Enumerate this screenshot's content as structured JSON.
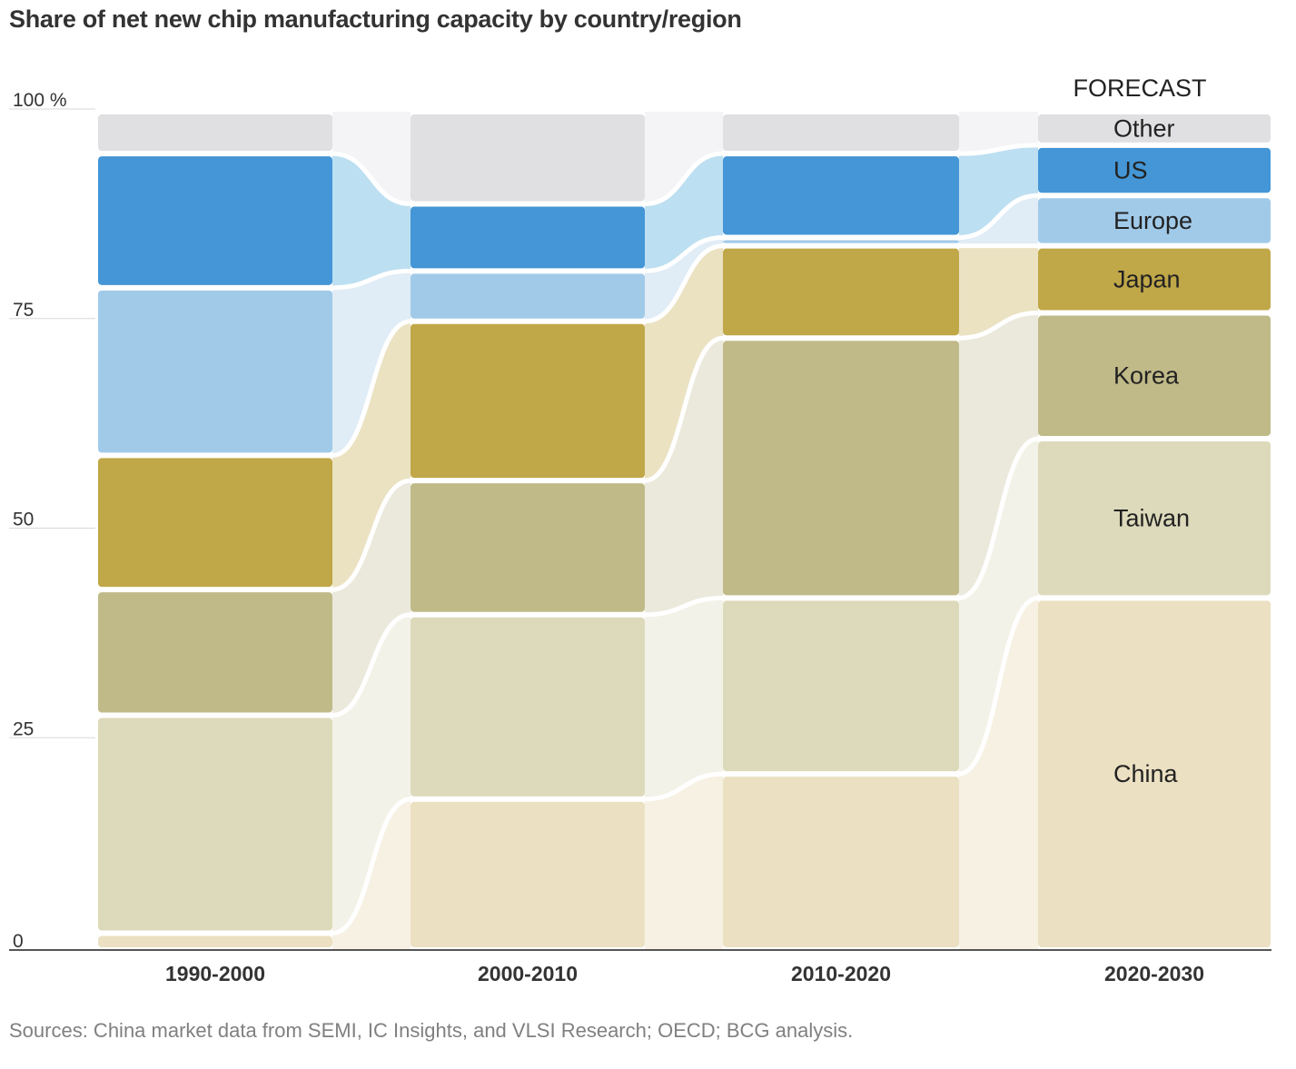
{
  "title": "Share of net new chip manufacturing capacity by country/region",
  "source": "Sources: China market data from SEMI, IC Insights, and VLSI Research; OECD; BCG analysis.",
  "forecast_label": "FORECAST",
  "colors": {
    "China": "#ebe0c2",
    "Taiwan": "#dddabb",
    "Korea": "#c0ba88",
    "Japan": "#c0a748",
    "Europe": "#a1cae9",
    "US": "#4496d6",
    "Other": "#e0e0e2"
  },
  "flow_colors": {
    "China": "#f6f1e3",
    "Taiwan": "#f3f2e8",
    "Korea": "#ebe9dc",
    "Japan": "#ebe2c2",
    "Europe": "#e0ecf6",
    "US": "#bcdff1",
    "Other": "#f4f4f6"
  },
  "chart_data": {
    "type": "bar",
    "stacked": true,
    "percent": true,
    "categories": [
      "1990-2000",
      "2000-2010",
      "2010-2020",
      "2020-2030"
    ],
    "forecast_category": "2020-2030",
    "ylim": [
      0,
      100
    ],
    "yticks": [
      0,
      25,
      50,
      75,
      100
    ],
    "ytick_labels": [
      "0",
      "25",
      "50",
      "75",
      "100 %"
    ],
    "series": [
      {
        "name": "China",
        "values": [
          2,
          18,
          21,
          42
        ]
      },
      {
        "name": "Taiwan",
        "values": [
          26,
          22,
          21,
          19
        ]
      },
      {
        "name": "Korea",
        "values": [
          15,
          16,
          31,
          15
        ]
      },
      {
        "name": "Japan",
        "values": [
          16,
          19,
          11,
          8
        ]
      },
      {
        "name": "Europe",
        "values": [
          20,
          6,
          1,
          6
        ]
      },
      {
        "name": "US",
        "values": [
          16,
          8,
          10,
          6
        ]
      },
      {
        "name": "Other",
        "values": [
          5,
          11,
          5,
          4
        ]
      }
    ]
  }
}
